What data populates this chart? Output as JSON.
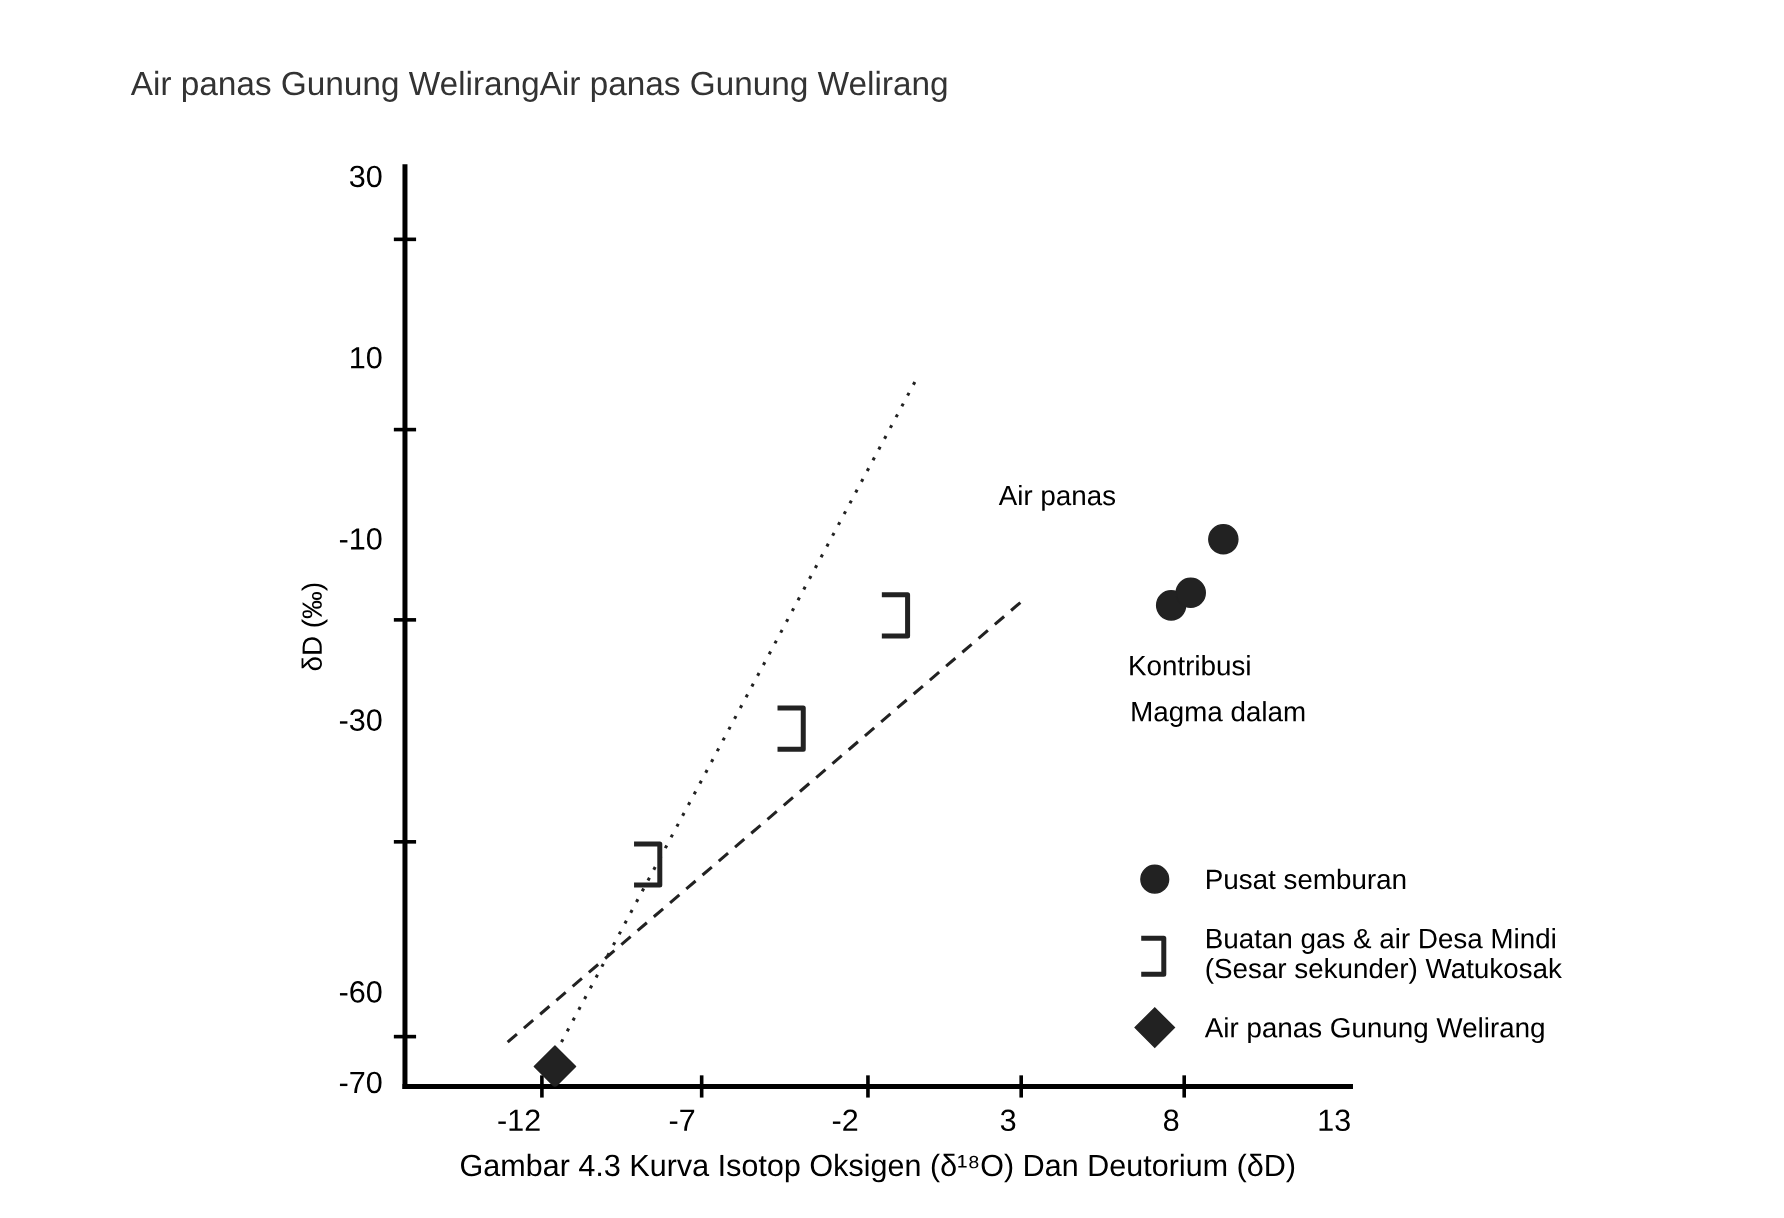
{
  "chart_data": {
    "type": "scatter",
    "title": "Air panas Gunung WelirangAir panas Gunung Welirang",
    "xlabel": "Gambar 4.3 Kurva Isotop Oksigen (δ¹⁸O) Dan Deutorium (δD)",
    "ylabel": "δD (‰)",
    "xlim": [
      -15.5,
      13.5
    ],
    "ylim": [
      -70.5,
      31
    ],
    "xticks": [
      -12,
      -7,
      -2,
      3,
      8,
      13,
      {
        "value": -11.3,
        "label": null
      },
      {
        "value": -6.4,
        "label": null
      },
      {
        "value": -1.3,
        "label": null
      },
      {
        "value": 3.4,
        "label": null
      },
      {
        "value": 8.4,
        "label": null
      }
    ],
    "yticks": [
      30,
      10,
      -10,
      -30,
      -60,
      -70,
      {
        "value": 23,
        "label": null
      },
      {
        "value": 2,
        "label": null
      },
      {
        "value": -19,
        "label": null
      },
      {
        "value": -43.5,
        "label": null
      },
      {
        "value": -65,
        "label": null
      }
    ],
    "grid": false,
    "legend": "bottom right",
    "series": [
      {
        "type": "line",
        "x": [
          -10.7,
          0.25
        ],
        "values": [
          -65.6,
          8.0
        ],
        "color": "#222222",
        "line_style": "dotted",
        "marker": "none"
      },
      {
        "type": "line",
        "x": [
          -12.35,
          3.5
        ],
        "values": [
          -65.6,
          -16.7
        ],
        "color": "#222222",
        "line_style": "dashed",
        "marker": "none"
      },
      {
        "name": "Pusat semburan",
        "x": [
          8.0,
          8.6,
          9.6
        ],
        "values": [
          -17.4,
          -16.0,
          -10.1
        ],
        "color": "#222222",
        "marker": "circle"
      },
      {
        "name": "Buatan gas & air Desa Mindi\n(Sesar sekunder) Watukosak",
        "x": [
          -8.0,
          -0.4,
          -3.6
        ],
        "values": [
          -46,
          -18.5,
          -31.0
        ],
        "color": "#222222"
      },
      {
        "name": "Air panas Gunung Welirang",
        "x": [
          -10.9
        ],
        "values": [
          -68.3
        ],
        "color": "#222222",
        "marker": "diamond"
      }
    ],
    "annotations": [
      "Air panas",
      "Kontribusi",
      "Magma dalam"
    ]
  }
}
